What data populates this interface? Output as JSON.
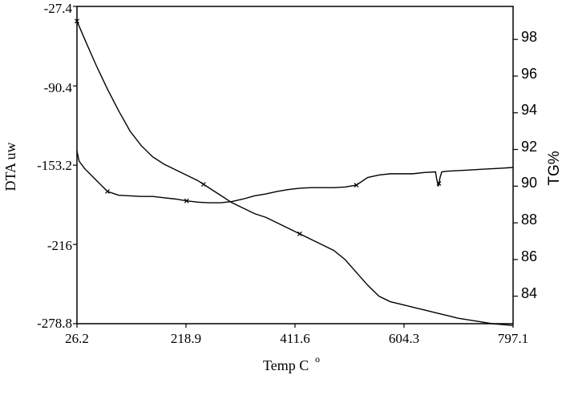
{
  "chart_data": {
    "type": "line",
    "xlabel": "Temp C",
    "xlabel_superscript": "o",
    "ylabel_left": "DTA uw",
    "ylabel_right": "TG%",
    "x_ticks": [
      "26.2",
      "218.9",
      "411.6",
      "604.3",
      "797.1"
    ],
    "y_left_ticks": [
      "-27.4",
      "-90.4",
      "-153.2",
      "-216",
      "-278.8"
    ],
    "y_right_ticks": [
      "98",
      "96",
      "94",
      "92",
      "90",
      "88",
      "86",
      "84"
    ],
    "xlim": [
      26.2,
      797.1
    ],
    "ylim_left": [
      -278.8,
      -27.4
    ],
    "ylim_right": [
      82.5,
      99.8
    ],
    "grid": false,
    "series": [
      {
        "axis": "right",
        "x": [
          26.2,
          40,
          60,
          80,
          100,
          120,
          140,
          160,
          180,
          200,
          220,
          240,
          260,
          280,
          300,
          320,
          340,
          360,
          380,
          400,
          420,
          440,
          460,
          480,
          500,
          520,
          540,
          560,
          580,
          600,
          620,
          640,
          660,
          680,
          700,
          720,
          740,
          760,
          780,
          797.1
        ],
        "y": [
          99.0,
          98.0,
          96.6,
          95.3,
          94.1,
          93.0,
          92.2,
          91.6,
          91.2,
          90.9,
          90.6,
          90.3,
          89.9,
          89.5,
          89.1,
          88.8,
          88.5,
          88.3,
          88.0,
          87.7,
          87.4,
          87.1,
          86.8,
          86.5,
          86.0,
          85.3,
          84.6,
          84.0,
          83.7,
          83.55,
          83.4,
          83.25,
          83.1,
          82.95,
          82.8,
          82.7,
          82.6,
          82.5,
          82.45,
          82.4
        ],
        "markers_x": [
          26.2,
          250,
          420
        ]
      },
      {
        "axis": "left",
        "x": [
          26.2,
          30,
          40,
          60,
          80,
          100,
          120,
          140,
          160,
          180,
          200,
          220,
          240,
          260,
          280,
          300,
          320,
          340,
          360,
          380,
          400,
          420,
          440,
          460,
          480,
          500,
          520,
          540,
          560,
          580,
          600,
          620,
          640,
          660,
          662,
          665,
          668,
          671,
          680,
          700,
          720,
          740,
          760,
          780,
          797.1
        ],
        "y": [
          -142,
          -150,
          -156,
          -165,
          -174,
          -177,
          -177.5,
          -178,
          -178,
          -179,
          -180,
          -181.5,
          -182.5,
          -183,
          -183,
          -182,
          -180,
          -177.5,
          -176,
          -174,
          -172.5,
          -171.5,
          -171,
          -171,
          -171,
          -170.5,
          -169,
          -163,
          -161,
          -160,
          -160,
          -160,
          -159,
          -158.5,
          -164,
          -170,
          -163,
          -158.5,
          -158,
          -157.5,
          -157,
          -156.5,
          -156,
          -155.5,
          -155
        ],
        "markers_x": [
          80,
          220,
          520,
          666
        ]
      }
    ]
  }
}
